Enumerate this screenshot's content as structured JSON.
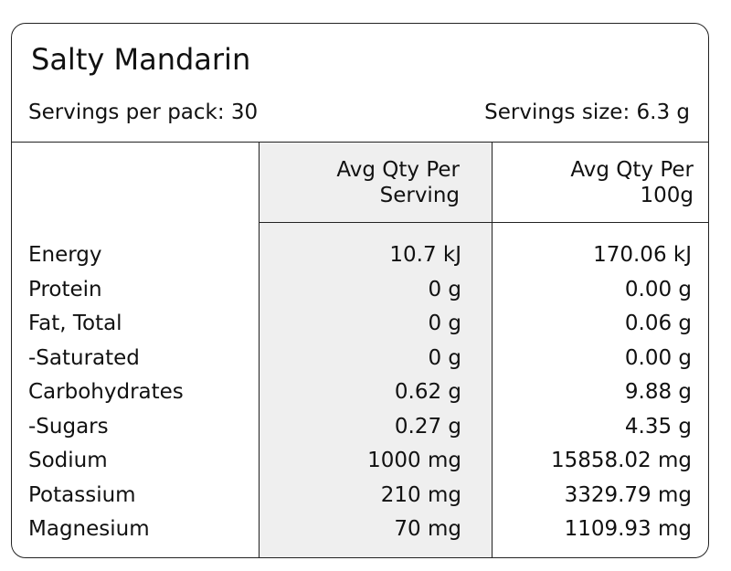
{
  "title": "Salty Mandarin",
  "servings_per_pack": "Servings per pack: 30",
  "serving_size": "Servings size: 6.3 g",
  "table": {
    "headers": [
      "Avg Qty Per Serving",
      "Avg Qty Per 100g"
    ],
    "rows": [
      [
        "Energy",
        "10.7 kJ",
        "170.06 kJ"
      ],
      [
        "Protein",
        "0 g",
        "0.00 g"
      ],
      [
        "Fat, Total",
        "0 g",
        "0.06 g"
      ],
      [
        "-Saturated",
        "0 g",
        "0.00 g"
      ],
      [
        "Carbohydrates",
        "0.62 g",
        "9.88 g"
      ],
      [
        "-Sugars",
        "0.27 g",
        "4.35 g"
      ],
      [
        "Sodium",
        "1000 mg",
        "15858.02 mg"
      ],
      [
        "Potassium",
        "210 mg",
        "3329.79 mg"
      ],
      [
        "Magnesium",
        "70 mg",
        "1109.93 mg"
      ]
    ]
  }
}
